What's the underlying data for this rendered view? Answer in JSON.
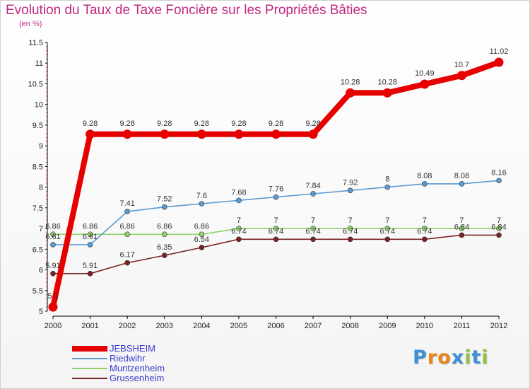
{
  "title": "Evolution du Taux de Taxe Foncière sur les Propriétés Bâties",
  "unit_label": "(en %)",
  "brand": {
    "text": "Proxiti",
    "letter_colors": [
      "#3d8fd6",
      "#e8861a",
      "#e8861a",
      "#3d8fd6",
      "#8fc33a",
      "#3d8fd6",
      "#8fc33a"
    ]
  },
  "chart_data": {
    "type": "line",
    "title": "Evolution du Taux de Taxe Foncière sur les Propriétés Bâties",
    "ylabel": "(en %)",
    "xlabel": "",
    "categories": [
      "2000",
      "2001",
      "2002",
      "2003",
      "2004",
      "2005",
      "2006",
      "2007",
      "2008",
      "2009",
      "2010",
      "2011",
      "2012"
    ],
    "ylim": [
      5,
      11.5
    ],
    "yticks": [
      "5",
      "5.5",
      "6",
      "6.5",
      "7",
      "7.5",
      "8",
      "8.5",
      "9",
      "9.5",
      "10",
      "10.5",
      "11",
      "11.5"
    ],
    "grid": false,
    "legend_position": "bottom-left",
    "series": [
      {
        "name": "JEBSHEIM",
        "color": "#e60000",
        "values": [
          5.1,
          9.28,
          9.28,
          9.28,
          9.28,
          9.28,
          9.28,
          9.28,
          10.28,
          10.28,
          10.49,
          10.7,
          11.02
        ],
        "labels": [
          "5.1",
          "9.28",
          "9.28",
          "9.28",
          "9.28",
          "9.28",
          "9.28",
          "9.28",
          "10.28",
          "10.28",
          "10.49",
          "10.7",
          "11.02"
        ]
      },
      {
        "name": "Riedwihr",
        "color": "#5b9bd1",
        "values": [
          6.61,
          6.61,
          7.41,
          7.52,
          7.6,
          7.68,
          7.76,
          7.84,
          7.92,
          8,
          8.08,
          8.08,
          8.16
        ],
        "labels": [
          "6.61",
          "6.61",
          "7.41",
          "7.52",
          "7.6",
          "7.68",
          "7.76",
          "7.84",
          "7.92",
          "8",
          "8.08",
          "8.08",
          "8.16"
        ]
      },
      {
        "name": "Muntzenheim",
        "color": "#8fd16a",
        "values": [
          6.86,
          6.86,
          6.86,
          6.86,
          6.86,
          7,
          7,
          7,
          7,
          7,
          7,
          7,
          7
        ],
        "labels": [
          "6.86",
          "6.86",
          "6.86",
          "6.86",
          "6.86",
          "7",
          "7",
          "7",
          "7",
          "7",
          "7",
          "7",
          "7"
        ]
      },
      {
        "name": "Grussenheim",
        "color": "#7a2323",
        "values": [
          5.91,
          5.91,
          6.17,
          6.35,
          6.54,
          6.74,
          6.74,
          6.74,
          6.74,
          6.74,
          6.74,
          6.84,
          6.84
        ],
        "labels": [
          "5.91",
          "5.91",
          "6.17",
          "6.35",
          "6.54",
          "6.74",
          "6.74",
          "6.74",
          "6.74",
          "6.74",
          "6.74",
          "6.84",
          "6.84"
        ]
      }
    ]
  }
}
